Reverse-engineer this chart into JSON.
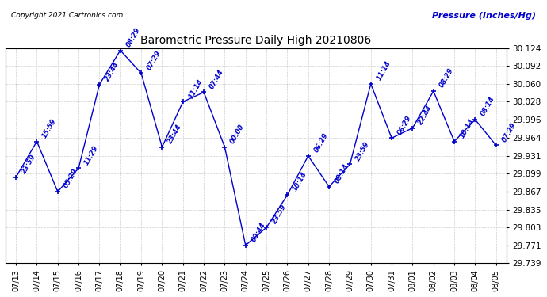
{
  "title": "Barometric Pressure Daily High 20210806",
  "ylabel": "Pressure (Inches/Hg)",
  "copyright": "Copyright 2021 Cartronics.com",
  "line_color": "#0000cc",
  "background_color": "#ffffff",
  "grid_color": "#bbbbbb",
  "ylim": [
    29.739,
    30.124
  ],
  "yticks": [
    29.739,
    29.771,
    29.803,
    29.835,
    29.867,
    29.899,
    29.931,
    29.964,
    29.996,
    30.028,
    30.06,
    30.092,
    30.124
  ],
  "dates": [
    "07/13",
    "07/14",
    "07/15",
    "07/16",
    "07/17",
    "07/18",
    "07/19",
    "07/20",
    "07/21",
    "07/22",
    "07/23",
    "07/24",
    "07/25",
    "07/26",
    "07/27",
    "07/28",
    "07/29",
    "07/30",
    "07/31",
    "08/01",
    "08/02",
    "08/03",
    "08/04",
    "08/05"
  ],
  "values": [
    29.893,
    29.957,
    29.867,
    29.909,
    30.059,
    30.12,
    30.079,
    29.947,
    30.028,
    30.045,
    29.947,
    29.771,
    29.803,
    29.861,
    29.931,
    29.876,
    29.916,
    30.06,
    29.963,
    29.981,
    30.047,
    29.957,
    29.996,
    29.95
  ],
  "annotations": [
    "23:59",
    "15:59",
    "05:29",
    "11:29",
    "23:44",
    "08:29",
    "07:29",
    "23:44",
    "11:14",
    "07:44",
    "00:00",
    "00:44",
    "23:59",
    "10:14",
    "06:29",
    "08:14",
    "23:59",
    "11:14",
    "06:29",
    "22:44",
    "08:29",
    "10:14",
    "08:14",
    "07:29"
  ],
  "figwidth": 6.9,
  "figheight": 3.75,
  "dpi": 100
}
